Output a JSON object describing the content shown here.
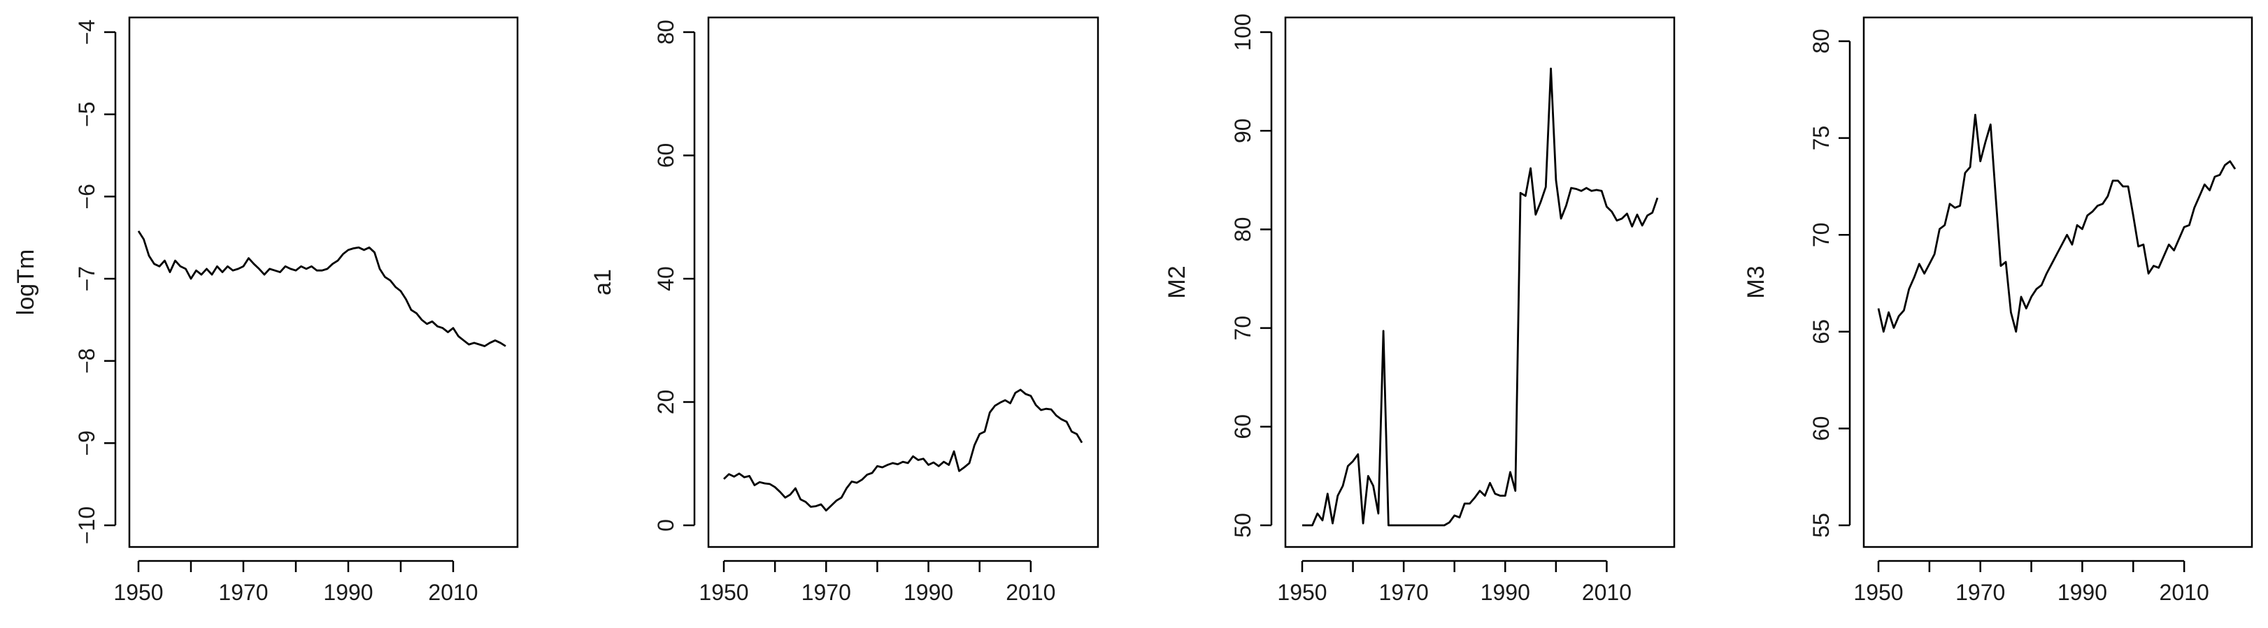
{
  "chart_data": [
    {
      "type": "line",
      "ylabel": "logTm",
      "xlim": [
        1950,
        2020
      ],
      "ylim": [
        -10,
        -4
      ],
      "xticks": [
        "1950",
        "1970",
        "1990",
        "2010"
      ],
      "yticks": [
        "−10",
        "−9",
        "−8",
        "−7",
        "−6",
        "−5",
        "−4"
      ],
      "series": [
        {
          "color": "#000000",
          "x": [
            1950,
            1951,
            1952,
            1953,
            1954,
            1955,
            1956,
            1957,
            1958,
            1959,
            1960,
            1961,
            1962,
            1963,
            1964,
            1965,
            1966,
            1967,
            1968,
            1969,
            1970,
            1971,
            1972,
            1973,
            1974,
            1975,
            1976,
            1977,
            1978,
            1979,
            1980,
            1981,
            1982,
            1983,
            1984,
            1985,
            1986,
            1987,
            1988,
            1989,
            1990,
            1991,
            1992,
            1993,
            1994,
            1995,
            1996,
            1997,
            1998,
            1999,
            2000,
            2001,
            2002,
            2003,
            2004,
            2005,
            2006,
            2007,
            2008,
            2009,
            2010,
            2011,
            2012,
            2013,
            2014,
            2015,
            2016,
            2017,
            2018,
            2019,
            2020
          ],
          "values": [
            -6.42,
            -6.52,
            -6.72,
            -6.82,
            -6.85,
            -6.78,
            -6.92,
            -6.78,
            -6.85,
            -6.88,
            -7.0,
            -6.9,
            -6.95,
            -6.88,
            -6.95,
            -6.85,
            -6.92,
            -6.85,
            -6.9,
            -6.88,
            -6.85,
            -6.75,
            -6.82,
            -6.88,
            -6.95,
            -6.88,
            -6.9,
            -6.92,
            -6.85,
            -6.88,
            -6.9,
            -6.85,
            -6.88,
            -6.85,
            -6.9,
            -6.9,
            -6.88,
            -6.82,
            -6.78,
            -6.7,
            -6.65,
            -6.63,
            -6.62,
            -6.65,
            -6.62,
            -6.68,
            -6.88,
            -6.98,
            -7.02,
            -7.1,
            -7.15,
            -7.25,
            -7.38,
            -7.42,
            -7.5,
            -7.55,
            -7.52,
            -7.58,
            -7.6,
            -7.65,
            -7.6,
            -7.7,
            -7.75,
            -7.8,
            -7.78,
            -7.8,
            -7.82,
            -7.78,
            -7.75,
            -7.78,
            -7.82
          ]
        }
      ]
    },
    {
      "type": "line",
      "ylabel": "a1",
      "xlim": [
        1950,
        2020
      ],
      "ylim": [
        0,
        80
      ],
      "xticks": [
        "1950",
        "1970",
        "1990",
        "2010"
      ],
      "yticks": [
        "0",
        "20",
        "40",
        "60",
        "80"
      ],
      "series": [
        {
          "color": "#000000",
          "x": [
            1950,
            1951,
            1952,
            1953,
            1954,
            1955,
            1956,
            1957,
            1958,
            1959,
            1960,
            1961,
            1962,
            1963,
            1964,
            1965,
            1966,
            1967,
            1968,
            1969,
            1970,
            1971,
            1972,
            1973,
            1974,
            1975,
            1976,
            1977,
            1978,
            1979,
            1980,
            1981,
            1982,
            1983,
            1984,
            1985,
            1986,
            1987,
            1988,
            1989,
            1990,
            1991,
            1992,
            1993,
            1994,
            1995,
            1996,
            1997,
            1998,
            1999,
            2000,
            2001,
            2002,
            2003,
            2004,
            2005,
            2006,
            2007,
            2008,
            2009,
            2010,
            2011,
            2012,
            2013,
            2014,
            2015,
            2016,
            2017,
            2018,
            2019,
            2020
          ],
          "values": [
            7.5,
            8.3,
            7.9,
            8.4,
            7.8,
            8.0,
            6.5,
            7.0,
            6.8,
            6.7,
            6.2,
            5.4,
            4.5,
            5.0,
            6.0,
            4.2,
            3.8,
            3.0,
            3.1,
            3.4,
            2.4,
            3.2,
            4.0,
            4.5,
            6.0,
            7.1,
            6.9,
            7.4,
            8.2,
            8.5,
            9.6,
            9.4,
            9.8,
            10.1,
            9.9,
            10.3,
            10.1,
            11.2,
            10.6,
            10.8,
            9.8,
            10.2,
            9.6,
            10.3,
            9.8,
            12.0,
            8.8,
            9.4,
            10.1,
            13.0,
            14.8,
            15.2,
            18.3,
            19.4,
            19.9,
            20.3,
            19.8,
            21.5,
            22.0,
            21.3,
            21.0,
            19.5,
            18.7,
            18.9,
            18.8,
            17.8,
            17.2,
            16.8,
            15.2,
            14.8,
            13.4
          ]
        }
      ]
    },
    {
      "type": "line",
      "ylabel": "M2",
      "xlim": [
        1950,
        2020
      ],
      "ylim": [
        50,
        100
      ],
      "xticks": [
        "1950",
        "1970",
        "1990",
        "2010"
      ],
      "yticks": [
        "50",
        "60",
        "70",
        "80",
        "90",
        "100"
      ],
      "series": [
        {
          "color": "#000000",
          "x": [
            1950,
            1951,
            1952,
            1953,
            1954,
            1955,
            1956,
            1957,
            1958,
            1959,
            1960,
            1961,
            1962,
            1963,
            1964,
            1965,
            1966,
            1967,
            1968,
            1969,
            1970,
            1971,
            1972,
            1973,
            1974,
            1975,
            1976,
            1977,
            1978,
            1979,
            1980,
            1981,
            1982,
            1983,
            1984,
            1985,
            1986,
            1987,
            1988,
            1989,
            1990,
            1991,
            1992,
            1993,
            1994,
            1995,
            1996,
            1997,
            1998,
            1999,
            2000,
            2001,
            2002,
            2003,
            2004,
            2005,
            2006,
            2007,
            2008,
            2009,
            2010,
            2011,
            2012,
            2013,
            2014,
            2015,
            2016,
            2017,
            2018,
            2019,
            2020
          ],
          "values": [
            50,
            50,
            50,
            51.2,
            50.5,
            53.2,
            50.2,
            53.0,
            54.0,
            56.0,
            56.5,
            57.2,
            50.2,
            55.0,
            54.0,
            51.2,
            69.7,
            50.0,
            50.0,
            50.0,
            50.0,
            50.0,
            50.0,
            50.0,
            50.0,
            50.0,
            50.0,
            50.0,
            50.0,
            50.3,
            51.0,
            50.8,
            52.2,
            52.2,
            52.8,
            53.5,
            53.0,
            54.3,
            53.2,
            53.0,
            53.0,
            55.4,
            53.5,
            83.7,
            83.4,
            86.2,
            81.5,
            82.8,
            84.3,
            96.3,
            85.0,
            81.1,
            82.4,
            84.2,
            84.1,
            83.9,
            84.2,
            83.9,
            84.0,
            83.9,
            82.3,
            81.8,
            80.9,
            81.1,
            81.6,
            80.3,
            81.5,
            80.4,
            81.4,
            81.7,
            83.2
          ]
        }
      ]
    },
    {
      "type": "line",
      "ylabel": "M3",
      "xlim": [
        1950,
        2020
      ],
      "ylim": [
        55,
        80
      ],
      "xticks": [
        "1950",
        "1970",
        "1990",
        "2010"
      ],
      "yticks": [
        "55",
        "60",
        "65",
        "70",
        "75",
        "80"
      ],
      "series": [
        {
          "color": "#000000",
          "x": [
            1950,
            1951,
            1952,
            1953,
            1954,
            1955,
            1956,
            1957,
            1958,
            1959,
            1960,
            1961,
            1962,
            1963,
            1964,
            1965,
            1966,
            1967,
            1968,
            1969,
            1970,
            1971,
            1972,
            1973,
            1974,
            1975,
            1976,
            1977,
            1978,
            1979,
            1980,
            1981,
            1982,
            1983,
            1984,
            1985,
            1986,
            1987,
            1988,
            1989,
            1990,
            1991,
            1992,
            1993,
            1994,
            1995,
            1996,
            1997,
            1998,
            1999,
            2000,
            2001,
            2002,
            2003,
            2004,
            2005,
            2006,
            2007,
            2008,
            2009,
            2010,
            2011,
            2012,
            2013,
            2014,
            2015,
            2016,
            2017,
            2018,
            2019,
            2020
          ],
          "values": [
            66.2,
            65.0,
            66.0,
            65.2,
            65.8,
            66.1,
            67.2,
            67.8,
            68.5,
            68.0,
            68.5,
            69.0,
            70.3,
            70.5,
            71.6,
            71.4,
            71.5,
            73.2,
            73.5,
            76.2,
            73.8,
            74.8,
            75.7,
            72.0,
            68.4,
            68.6,
            66.0,
            65.0,
            66.8,
            66.2,
            66.8,
            67.2,
            67.4,
            68.0,
            68.5,
            69.0,
            69.5,
            70.0,
            69.5,
            70.5,
            70.3,
            71.0,
            71.2,
            71.5,
            71.6,
            72.0,
            72.8,
            72.8,
            72.5,
            72.5,
            71.0,
            69.4,
            69.5,
            68.0,
            68.4,
            68.3,
            68.9,
            69.5,
            69.2,
            69.8,
            70.4,
            70.5,
            71.4,
            72.0,
            72.6,
            72.3,
            73.0,
            73.1,
            73.6,
            73.8,
            73.4
          ]
        }
      ]
    }
  ]
}
